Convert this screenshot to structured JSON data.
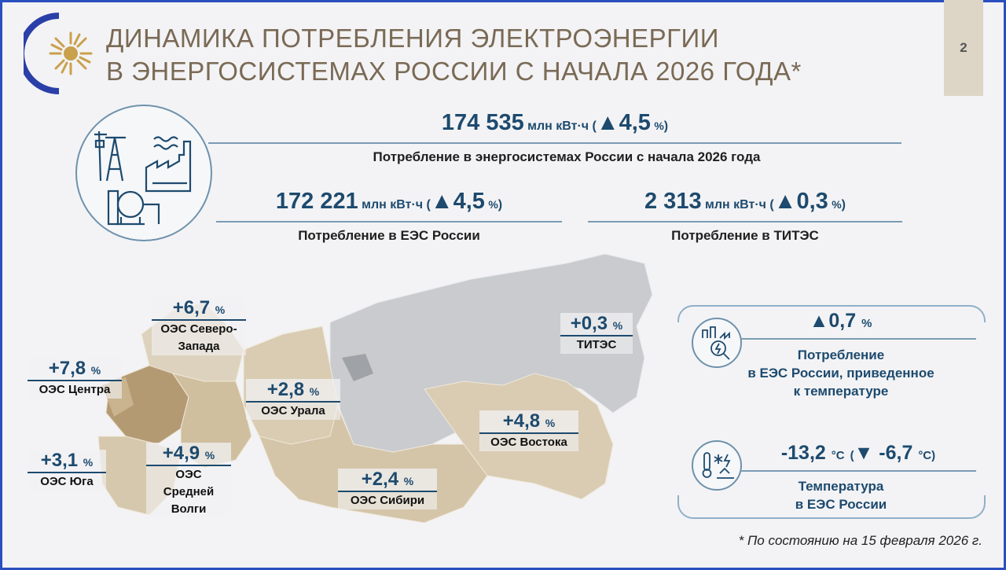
{
  "title": {
    "line1": "ДИНАМИКА ПОТРЕБЛЕНИЯ ЭЛЕКТРОЭНЕРГИИ",
    "line2": "В ЭНЕРГОСИСТЕМАХ РОССИИ С НАЧАЛА 2026 ГОДА*"
  },
  "page_number": "2",
  "total": {
    "value": "174 535",
    "unit": "млн кВт·ч",
    "open": "(",
    "arrow": "▲",
    "delta": "4,5",
    "pct": "%",
    "close": ")",
    "caption": "Потребление в энергосистемах России с начала 2026 года"
  },
  "ees": {
    "value": "172 221",
    "unit": "млн кВт·ч",
    "open": "(",
    "arrow": "▲",
    "delta": "4,5",
    "pct": "%",
    "close": ")",
    "caption": "Потребление в ЕЭС России"
  },
  "tites": {
    "value": "2 313",
    "unit": "млн кВт·ч",
    "open": "(",
    "arrow": "▲",
    "delta": "0,3",
    "pct": "%",
    "close": ")",
    "caption": "Потребление в ТИТЭС"
  },
  "regions": [
    {
      "id": "north-west",
      "value": "+6,7",
      "pct": "%",
      "name_lines": [
        "ОЭС Северо-",
        "Запада"
      ]
    },
    {
      "id": "center",
      "value": "+7,8",
      "pct": "%",
      "name_lines": [
        "ОЭС Центра"
      ]
    },
    {
      "id": "south",
      "value": "+3,1",
      "pct": "%",
      "name_lines": [
        "ОЭС Юга"
      ]
    },
    {
      "id": "volga",
      "value": "+4,9",
      "pct": "%",
      "name_lines": [
        "ОЭС",
        "Средней",
        "Волги"
      ]
    },
    {
      "id": "ural",
      "value": "+2,8",
      "pct": "%",
      "name_lines": [
        "ОЭС Урала"
      ]
    },
    {
      "id": "siberia",
      "value": "+2,4",
      "pct": "%",
      "name_lines": [
        "ОЭС Сибири"
      ]
    },
    {
      "id": "east",
      "value": "+4,8",
      "pct": "%",
      "name_lines": [
        "ОЭС Востока"
      ]
    },
    {
      "id": "tites",
      "value": "+0,3",
      "pct": "%",
      "name_lines": [
        "ТИТЭС"
      ]
    }
  ],
  "panel": {
    "adjusted": {
      "arrow": "▲",
      "value": "0,7",
      "pct": "%",
      "caption_lines": [
        "Потребление",
        "в ЕЭС России, приведенное",
        "к температуре"
      ]
    },
    "temperature": {
      "value": "-13,2",
      "unit": "°C",
      "open": "(",
      "arrow": "▼",
      "delta": "-6,7",
      "unit2": "°C",
      "close": ")",
      "caption_lines": [
        "Температура",
        "в ЕЭС России"
      ]
    }
  },
  "footnote": "* По состоянию на 15 февраля 2026 г.",
  "colors": {
    "accent_blue": "#1d4a6e",
    "title_brown": "#7a6a55",
    "map_beige": "#d9ccb3",
    "map_dark": "#b39a72",
    "map_grey": "#c9cbce"
  }
}
